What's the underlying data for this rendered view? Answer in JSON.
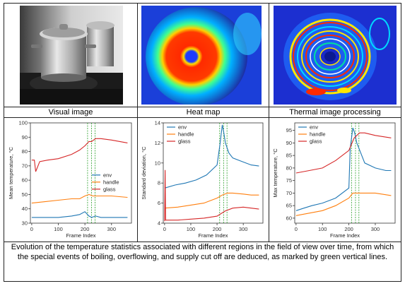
{
  "captions": {
    "visual": "Visual image",
    "heat": "Heat map",
    "thermal": "Thermal image processing"
  },
  "figure_caption": "Evolution of the temperature statistics associated with different regions in the field of view over time, from which the special events of boiling, overflowing, and supply cut off are deduced, as marked by green vertical lines.",
  "colors": {
    "env": "#1f77b4",
    "handle": "#ff7f0e",
    "glass": "#d62728",
    "event": "#2ca02c"
  },
  "icons": [
    "pot-photo",
    "heat-map-image",
    "thermal-processing-image"
  ],
  "chart_data": [
    {
      "type": "line",
      "xlabel": "Frame Index",
      "ylabel": "Mean temperature, °C",
      "xlim": [
        -5,
        375
      ],
      "ylim": [
        30,
        100
      ],
      "xticks": [
        0,
        100,
        200,
        300
      ],
      "yticks": [
        30,
        40,
        50,
        60,
        70,
        80,
        90,
        100
      ],
      "events": [
        210,
        225,
        238
      ],
      "legend_position": "center-right",
      "series": [
        {
          "name": "env",
          "x": [
            0,
            50,
            100,
            150,
            180,
            200,
            215,
            225,
            240,
            260,
            300,
            360
          ],
          "y": [
            34,
            34,
            34,
            35,
            36,
            38,
            35,
            34,
            35,
            34,
            34,
            34
          ]
        },
        {
          "name": "handle",
          "x": [
            0,
            50,
            100,
            150,
            180,
            200,
            215,
            230,
            250,
            300,
            360
          ],
          "y": [
            44,
            45,
            46,
            47,
            47,
            49,
            50,
            49,
            49,
            49,
            48
          ]
        },
        {
          "name": "glass",
          "x": [
            0,
            10,
            15,
            30,
            60,
            100,
            150,
            180,
            200,
            215,
            225,
            240,
            260,
            300,
            360
          ],
          "y": [
            74,
            74,
            66,
            73,
            74,
            75,
            78,
            81,
            84,
            87,
            87,
            89,
            89,
            88,
            86
          ]
        }
      ]
    },
    {
      "type": "line",
      "xlabel": "Frame Index",
      "ylabel": "Standard deviation, °C",
      "xlim": [
        -5,
        375
      ],
      "ylim": [
        4,
        14
      ],
      "xticks": [
        0,
        100,
        200,
        300
      ],
      "yticks": [
        4,
        6,
        8,
        10,
        12,
        14
      ],
      "events": [
        210,
        225,
        238
      ],
      "legend_position": "top-left",
      "series": [
        {
          "name": "env",
          "x": [
            0,
            40,
            80,
            120,
            160,
            200,
            212,
            220,
            226,
            232,
            245,
            260,
            290,
            330,
            360
          ],
          "y": [
            7.5,
            7.8,
            8.0,
            8.3,
            8.8,
            9.8,
            12.0,
            13.8,
            13.0,
            12.0,
            11.0,
            10.5,
            10.2,
            9.8,
            9.7
          ]
        },
        {
          "name": "handle",
          "x": [
            0,
            50,
            100,
            150,
            200,
            220,
            240,
            260,
            300,
            330,
            360
          ],
          "y": [
            5.5,
            5.6,
            5.8,
            6.0,
            6.5,
            6.8,
            7.0,
            7.0,
            6.9,
            6.8,
            6.8
          ]
        },
        {
          "name": "glass",
          "x": [
            0,
            2,
            4,
            6,
            20,
            50,
            100,
            150,
            200,
            230,
            260,
            300,
            330,
            360
          ],
          "y": [
            4.2,
            9.3,
            4.3,
            4.3,
            4.3,
            4.3,
            4.4,
            4.5,
            4.7,
            5.2,
            5.5,
            5.6,
            5.5,
            5.4
          ]
        }
      ]
    },
    {
      "type": "line",
      "xlabel": "Frame Index",
      "ylabel": "Max temperature, °C",
      "xlim": [
        -5,
        375
      ],
      "ylim": [
        58,
        98
      ],
      "xticks": [
        0,
        100,
        200,
        300
      ],
      "yticks": [
        60,
        65,
        70,
        75,
        80,
        85,
        90,
        95
      ],
      "events": [
        210,
        225,
        238
      ],
      "legend_position": "top-left",
      "series": [
        {
          "name": "env",
          "x": [
            0,
            30,
            60,
            100,
            150,
            200,
            205,
            215,
            222,
            230,
            245,
            260,
            300,
            340,
            360
          ],
          "y": [
            63,
            64,
            65,
            66,
            68,
            72,
            88,
            96,
            94,
            90,
            86,
            82,
            80,
            79,
            79
          ]
        },
        {
          "name": "handle",
          "x": [
            0,
            50,
            100,
            150,
            200,
            215,
            230,
            260,
            300,
            360
          ],
          "y": [
            61,
            62,
            63,
            65,
            68,
            70,
            70,
            70,
            70,
            69
          ]
        },
        {
          "name": "glass",
          "x": [
            0,
            50,
            100,
            150,
            200,
            220,
            240,
            260,
            300,
            360
          ],
          "y": [
            78,
            79,
            80,
            83,
            87,
            92,
            94,
            94,
            93,
            92
          ]
        }
      ]
    }
  ]
}
